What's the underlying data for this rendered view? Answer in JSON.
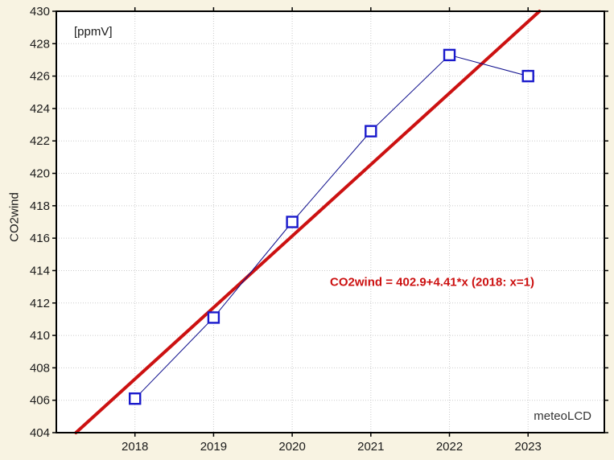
{
  "chart_data": {
    "type": "scatter",
    "title": "",
    "ylabel": "CO2wind",
    "unit_label": "[ppmV]",
    "watermark": "meteoLCD",
    "x": [
      2018,
      2019,
      2020,
      2021,
      2022,
      2023
    ],
    "series": [
      {
        "name": "CO2wind",
        "values": [
          406.1,
          411.1,
          417.0,
          422.6,
          427.3,
          426.0
        ]
      }
    ],
    "trend_line": {
      "label": "CO2wind = 402.9+4.41*x (2018: x=1)",
      "intercept": 402.9,
      "slope": 4.41,
      "x_base_year": 2017
    },
    "xlim": [
      2017.0,
      2023.97
    ],
    "ylim": [
      404,
      430
    ],
    "xticks": [
      2018,
      2019,
      2020,
      2021,
      2022,
      2023
    ],
    "yticks": [
      404,
      406,
      408,
      410,
      412,
      414,
      416,
      418,
      420,
      422,
      424,
      426,
      428,
      430
    ],
    "grid": true,
    "legend_position": "none",
    "colors": {
      "page_background": "#F8F3E2",
      "plot_background": "#FFFFFF",
      "grid": "#CBCBCB",
      "axis": "#000000",
      "tick_label": "#1A1A1A",
      "trend": "#CC1111",
      "series_line": "#0D0D8C",
      "marker": "#1A1ACC",
      "marker_fill": "#FFFFFF",
      "watermark_text": "#333333"
    }
  }
}
